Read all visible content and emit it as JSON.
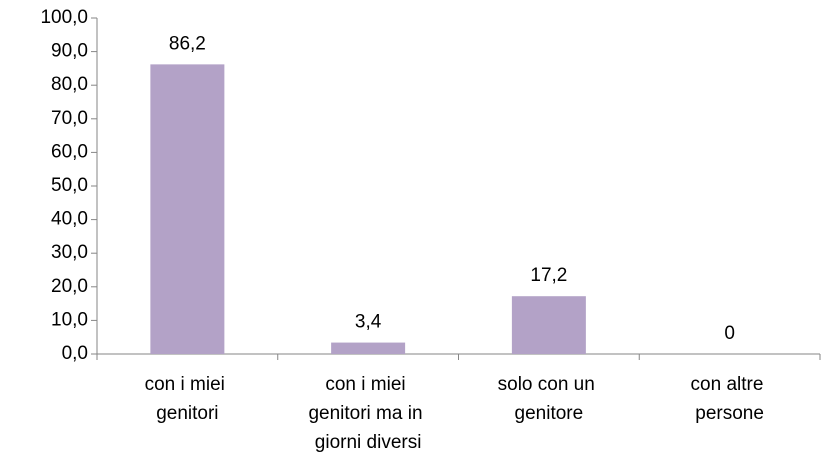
{
  "chart_data": {
    "type": "bar",
    "categories": [
      "con i miei genitori",
      "con i miei genitori ma in giorni diversi",
      "solo con un genitore",
      "con altre persone"
    ],
    "values": [
      86.2,
      3.4,
      17.2,
      0
    ],
    "value_labels": [
      "86,2",
      "3,4",
      "17,2",
      "0"
    ],
    "color": "#b3a2c7",
    "ylim": [
      0,
      100
    ],
    "yticks": [
      {
        "value": 0,
        "label": "0,0"
      },
      {
        "value": 10,
        "label": "10,0"
      },
      {
        "value": 20,
        "label": "20,0"
      },
      {
        "value": 30,
        "label": "30,0"
      },
      {
        "value": 40,
        "label": "40,0"
      },
      {
        "value": 50,
        "label": "50,0"
      },
      {
        "value": 60,
        "label": "60,0"
      },
      {
        "value": 70,
        "label": "70,0"
      },
      {
        "value": 80,
        "label": "80,0"
      },
      {
        "value": 90,
        "label": "90,0"
      },
      {
        "value": 100,
        "label": "100,0"
      }
    ],
    "grid": false
  }
}
